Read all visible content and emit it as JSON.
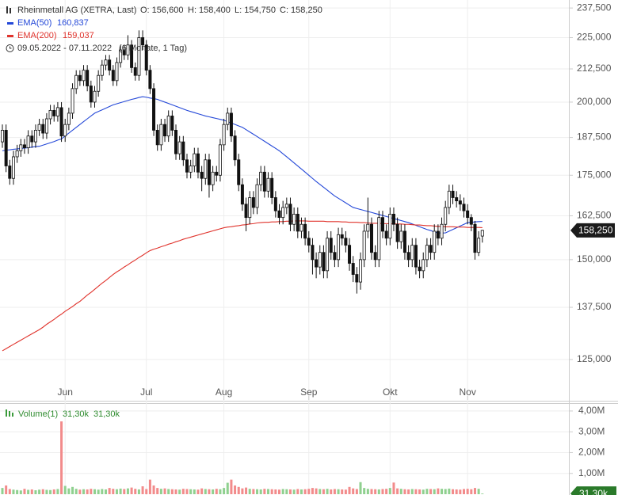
{
  "chart_data": [
    {
      "type": "candlestick",
      "title": "Rheinmetall AG (XETRA, Last)",
      "header": [
        "O: 156,600",
        "H: 158,400",
        "L: 154,750",
        "C: 158,250"
      ],
      "range_text": "09.05.2022 - 07.11.2022",
      "period_text": "(6 Monate, 1 Tag)",
      "last_price_label": "158,250",
      "log_scale": true,
      "grid": true,
      "ylim": [
        116.1,
        241
      ],
      "yticks": [
        {
          "value": 125,
          "label": "125,000"
        },
        {
          "value": 137.5,
          "label": "137,500"
        },
        {
          "value": 150,
          "label": "150,000"
        },
        {
          "value": 162.5,
          "label": "162,500"
        },
        {
          "value": 175,
          "label": "175,000"
        },
        {
          "value": 187.5,
          "label": "187,500"
        },
        {
          "value": 200,
          "label": "200,000"
        },
        {
          "value": 212.5,
          "label": "212,500"
        },
        {
          "value": 225,
          "label": "225,000"
        },
        {
          "value": 237.5,
          "label": "237,500"
        }
      ],
      "categories": [
        null,
        null,
        null,
        null,
        null,
        null,
        null,
        null,
        null,
        null,
        null,
        null,
        null,
        null,
        null,
        null,
        null,
        "Jun",
        null,
        null,
        null,
        null,
        null,
        null,
        null,
        null,
        null,
        null,
        null,
        null,
        null,
        null,
        null,
        null,
        null,
        null,
        null,
        null,
        null,
        "Jul",
        null,
        null,
        null,
        null,
        null,
        null,
        null,
        null,
        null,
        null,
        null,
        null,
        null,
        null,
        null,
        null,
        null,
        null,
        null,
        null,
        "Aug",
        null,
        null,
        null,
        null,
        null,
        null,
        null,
        null,
        null,
        null,
        null,
        null,
        null,
        null,
        null,
        null,
        null,
        null,
        null,
        null,
        null,
        null,
        "Sep",
        null,
        null,
        null,
        null,
        null,
        null,
        null,
        null,
        null,
        null,
        null,
        null,
        null,
        null,
        null,
        null,
        null,
        null,
        null,
        null,
        null,
        "Okt",
        null,
        null,
        null,
        null,
        null,
        null,
        null,
        null,
        null,
        null,
        null,
        null,
        null,
        null,
        null,
        null,
        null,
        null,
        null,
        null,
        "Nov",
        null,
        null,
        null,
        null
      ],
      "open": [
        186,
        190,
        178,
        174,
        181,
        183,
        185,
        184,
        188,
        186,
        190,
        192,
        189,
        194,
        197,
        195,
        198,
        188,
        192,
        196,
        205,
        210,
        208,
        212,
        206,
        200,
        204,
        210,
        214,
        216,
        212,
        208,
        215,
        220,
        218,
        222,
        213,
        210,
        225,
        222,
        212,
        205,
        190,
        185,
        192,
        188,
        195,
        190,
        182,
        186,
        180,
        176,
        178,
        182,
        176,
        174,
        180,
        172,
        176,
        175,
        185,
        192,
        196,
        188,
        180,
        172,
        166,
        162,
        168,
        165,
        172,
        176,
        170,
        174,
        168,
        164,
        162,
        165,
        166,
        160,
        163,
        158,
        160,
        156,
        154,
        150,
        148,
        152,
        147,
        156,
        152,
        150,
        157,
        156,
        154,
        149,
        146,
        144,
        150,
        158,
        160,
        152,
        150,
        162,
        158,
        156,
        163,
        160,
        155,
        158,
        152,
        150,
        154,
        148,
        147,
        150,
        154,
        152,
        158,
        156,
        160,
        165,
        170,
        168,
        167,
        166,
        164,
        162,
        160,
        152,
        156.6
      ],
      "high": [
        192,
        192,
        180,
        183,
        185,
        187,
        187,
        190,
        190,
        192,
        194,
        194,
        196,
        199,
        199,
        200,
        200,
        194,
        198,
        207,
        212,
        212,
        214,
        214,
        208,
        206,
        212,
        216,
        218,
        218,
        214,
        217,
        222,
        222,
        226,
        224,
        215,
        228,
        228,
        224,
        214,
        207,
        192,
        194,
        194,
        197,
        197,
        192,
        188,
        188,
        182,
        180,
        184,
        184,
        178,
        182,
        182,
        178,
        178,
        187,
        194,
        198,
        198,
        190,
        182,
        174,
        168,
        170,
        170,
        174,
        178,
        178,
        176,
        176,
        170,
        166,
        167,
        168,
        168,
        165,
        165,
        162,
        162,
        158,
        156,
        152,
        154,
        154,
        158,
        158,
        154,
        159,
        159,
        158,
        156,
        151,
        148,
        152,
        160,
        168,
        162,
        154,
        164,
        164,
        160,
        165,
        165,
        162,
        160,
        160,
        154,
        156,
        156,
        150,
        152,
        156,
        156,
        160,
        160,
        162,
        167,
        172,
        172,
        170,
        169,
        168,
        166,
        163,
        161,
        158,
        158.4
      ],
      "low": [
        184,
        176,
        172,
        172,
        179,
        181,
        182,
        182,
        184,
        184,
        188,
        187,
        187,
        192,
        193,
        193,
        186,
        186,
        190,
        194,
        203,
        206,
        206,
        204,
        198,
        198,
        202,
        208,
        212,
        210,
        206,
        206,
        213,
        216,
        216,
        211,
        208,
        208,
        220,
        210,
        203,
        188,
        183,
        183,
        186,
        186,
        188,
        180,
        180,
        178,
        174,
        174,
        176,
        174,
        170,
        172,
        168,
        170,
        173,
        173,
        183,
        190,
        186,
        178,
        170,
        164,
        158,
        160,
        163,
        163,
        170,
        168,
        168,
        166,
        162,
        160,
        160,
        163,
        158,
        158,
        156,
        156,
        154,
        152,
        146,
        145,
        146,
        145,
        145,
        150,
        148,
        148,
        154,
        152,
        147,
        144,
        141,
        142,
        148,
        156,
        150,
        148,
        148,
        156,
        154,
        154,
        158,
        153,
        153,
        150,
        148,
        148,
        146,
        145,
        145,
        148,
        150,
        150,
        154,
        154,
        158,
        163,
        166,
        165,
        164,
        162,
        160,
        158,
        150,
        151,
        154.75
      ],
      "close": [
        190,
        178,
        174,
        181,
        183,
        185,
        184,
        188,
        186,
        190,
        192,
        189,
        194,
        197,
        195,
        198,
        188,
        192,
        196,
        205,
        210,
        208,
        212,
        206,
        200,
        204,
        210,
        214,
        216,
        212,
        208,
        215,
        220,
        218,
        222,
        213,
        210,
        225,
        222,
        212,
        205,
        190,
        185,
        192,
        188,
        195,
        190,
        182,
        186,
        180,
        176,
        178,
        182,
        176,
        174,
        180,
        172,
        176,
        175,
        185,
        192,
        196,
        188,
        180,
        172,
        166,
        162,
        168,
        165,
        172,
        176,
        170,
        174,
        168,
        164,
        162,
        165,
        166,
        160,
        163,
        158,
        160,
        156,
        154,
        150,
        148,
        152,
        147,
        156,
        152,
        150,
        157,
        156,
        154,
        149,
        146,
        144,
        150,
        158,
        160,
        152,
        150,
        162,
        158,
        156,
        163,
        160,
        155,
        158,
        152,
        150,
        154,
        148,
        147,
        150,
        154,
        152,
        158,
        156,
        160,
        165,
        170,
        168,
        167,
        166,
        164,
        162,
        160,
        152,
        156,
        158.25
      ],
      "series": [
        {
          "name": "EMA(50)",
          "color": "#2448d8",
          "last_label": "160,837",
          "values": [
            183,
            183.2,
            183.3,
            183.5,
            183.6,
            183.8,
            183.9,
            184,
            184.2,
            184.4,
            184.5,
            184.9,
            185.3,
            185.7,
            186.1,
            186.6,
            187,
            188,
            189,
            190,
            191,
            192,
            193,
            194,
            195,
            196,
            196.6,
            197.2,
            197.8,
            198.4,
            199,
            199.4,
            199.8,
            200.2,
            200.6,
            201,
            201.3,
            201.7,
            202,
            201.8,
            201.5,
            201.3,
            201,
            200.5,
            200,
            199.5,
            199,
            198.5,
            198,
            197.5,
            197,
            196.6,
            196.2,
            195.8,
            195.4,
            195,
            194.7,
            194.4,
            194.1,
            193.8,
            193.5,
            193,
            192.5,
            192,
            191.5,
            191,
            190.2,
            189.4,
            188.6,
            187.8,
            187,
            186.2,
            185.4,
            184.6,
            183.8,
            183,
            182,
            181,
            180,
            179,
            178,
            177,
            176,
            175,
            174,
            173,
            172.1,
            171.2,
            170.3,
            169.4,
            168.5,
            167.8,
            167.1,
            166.4,
            165.7,
            165,
            164.7,
            164.4,
            164.1,
            163.8,
            163.5,
            163.2,
            162.9,
            162.6,
            162.3,
            162,
            161.7,
            161.4,
            161.1,
            160.8,
            160.5,
            160.1,
            159.7,
            159.3,
            158.9,
            158.5,
            158.2,
            157.8,
            157.5,
            157.5,
            157.5,
            158,
            158.5,
            159,
            159.5,
            160,
            160.5,
            160.6,
            160.7,
            160.8,
            160.837
          ]
        },
        {
          "name": "EMA(200)",
          "color": "#e0332c",
          "last_label": "159,037",
          "values": [
            127,
            127.5,
            128,
            128.5,
            129,
            129.5,
            130,
            130.5,
            131,
            131.5,
            132,
            132.6,
            133.3,
            133.9,
            134.5,
            135.2,
            135.8,
            136.5,
            137.1,
            137.7,
            138.4,
            139,
            139.8,
            140.6,
            141.3,
            142.1,
            142.9,
            143.7,
            144.4,
            145.2,
            146,
            146.7,
            147.3,
            148,
            148.6,
            149.3,
            149.9,
            150.6,
            151.2,
            151.9,
            152.5,
            152.9,
            153.2,
            153.6,
            153.9,
            154.3,
            154.6,
            155,
            155.3,
            155.7,
            156,
            156.3,
            156.6,
            156.9,
            157.2,
            157.5,
            157.8,
            158.1,
            158.4,
            158.7,
            159,
            159.2,
            159.3,
            159.5,
            159.6,
            159.8,
            159.9,
            160.1,
            160.2,
            160.4,
            160.5,
            160.6,
            160.6,
            160.7,
            160.7,
            160.8,
            160.8,
            160.9,
            160.9,
            161,
            161,
            161,
            161,
            160.9,
            160.9,
            160.9,
            160.9,
            160.9,
            160.8,
            160.8,
            160.8,
            160.8,
            160.7,
            160.7,
            160.6,
            160.6,
            160.6,
            160.5,
            160.5,
            160.4,
            160.3,
            160.3,
            160.3,
            160.2,
            160.2,
            160.2,
            160.1,
            160.1,
            160.1,
            160,
            160,
            159.9,
            159.8,
            159.8,
            159.7,
            159.6,
            159.6,
            159.5,
            159.4,
            159.4,
            159.3,
            159.3,
            159.3,
            159.2,
            159.2,
            159.2,
            159.1,
            159.1,
            159.1,
            159.1,
            159.037
          ]
        }
      ]
    },
    {
      "type": "bar",
      "title": "Volume(1)",
      "legend_values": [
        "31,30k",
        "31,30k"
      ],
      "last_label": "31,30k",
      "up_color": "#8fd08f",
      "down_color": "#f28b8b",
      "ylim": [
        0,
        4340000
      ],
      "yticks": [
        {
          "value": 1000000,
          "label": "1,00M"
        },
        {
          "value": 2000000,
          "label": "2,00M"
        },
        {
          "value": 3000000,
          "label": "3,00M"
        },
        {
          "value": 4000000,
          "label": "4,00M"
        }
      ],
      "values": [
        300000,
        420000,
        250000,
        220000,
        200000,
        180000,
        260000,
        210000,
        230000,
        190000,
        220000,
        240000,
        210000,
        200000,
        230000,
        250000,
        3500000,
        400000,
        280000,
        350000,
        260000,
        220000,
        240000,
        230000,
        260000,
        240000,
        220000,
        250000,
        230000,
        300000,
        260000,
        240000,
        270000,
        250000,
        280000,
        320000,
        260000,
        230000,
        380000,
        250000,
        700000,
        420000,
        300000,
        260000,
        280000,
        250000,
        240000,
        230000,
        220000,
        260000,
        250000,
        240000,
        230000,
        220000,
        280000,
        250000,
        240000,
        230000,
        260000,
        240000,
        300000,
        550000,
        700000,
        420000,
        350000,
        280000,
        320000,
        260000,
        250000,
        240000,
        230000,
        260000,
        250000,
        240000,
        230000,
        220000,
        250000,
        240000,
        230000,
        220000,
        250000,
        230000,
        240000,
        260000,
        300000,
        280000,
        250000,
        240000,
        260000,
        230000,
        250000,
        240000,
        230000,
        220000,
        350000,
        280000,
        250000,
        580000,
        300000,
        260000,
        250000,
        240000,
        230000,
        250000,
        260000,
        300000,
        560000,
        280000,
        260000,
        240000,
        230000,
        250000,
        240000,
        230000,
        220000,
        260000,
        250000,
        240000,
        280000,
        260000,
        250000,
        270000,
        240000,
        230000,
        220000,
        250000,
        260000,
        240000,
        300000,
        260000,
        31300
      ]
    }
  ]
}
